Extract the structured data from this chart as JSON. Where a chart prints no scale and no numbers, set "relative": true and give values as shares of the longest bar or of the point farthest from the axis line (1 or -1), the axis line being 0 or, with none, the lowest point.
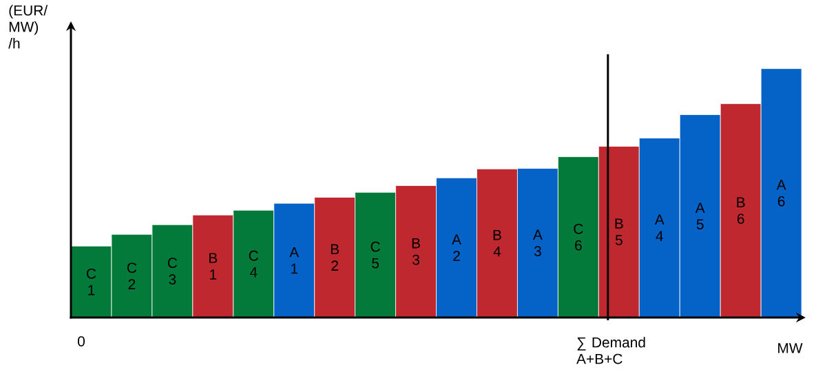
{
  "chart_data": {
    "type": "bar",
    "relative": true,
    "ylabel": "(EUR/ MW) /h",
    "xlabel": "MW",
    "annotations": [
      "0"
    ],
    "categories": [
      "C 1",
      "C 2",
      "C 3",
      "B 1",
      "C 4",
      "A 1",
      "B 2",
      "C 5",
      "B 3",
      "A 2",
      "B 4",
      "A 3",
      "C 6",
      "B 5",
      "A 4",
      "A 5",
      "B 6",
      "A 6"
    ],
    "values": [
      0.287,
      0.334,
      0.373,
      0.412,
      0.431,
      0.459,
      0.483,
      0.503,
      0.53,
      0.561,
      0.597,
      0.599,
      0.646,
      0.688,
      0.721,
      0.815,
      0.859,
      1
    ],
    "colors": [
      "#047a3a",
      "#047a3a",
      "#047a3a",
      "#c0282f",
      "#047a3a",
      "#0563c8",
      "#c0282f",
      "#047a3a",
      "#c0282f",
      "#0563c8",
      "#c0282f",
      "#0563c8",
      "#047a3a",
      "#c0282f",
      "#0563c8",
      "#0563c8",
      "#c0282f",
      "#0563c8"
    ],
    "ref_lines": [
      {
        "axis": "x",
        "value": "B 5",
        "label": "∑ Demand A+B+C",
        "color": "#000000"
      }
    ]
  }
}
